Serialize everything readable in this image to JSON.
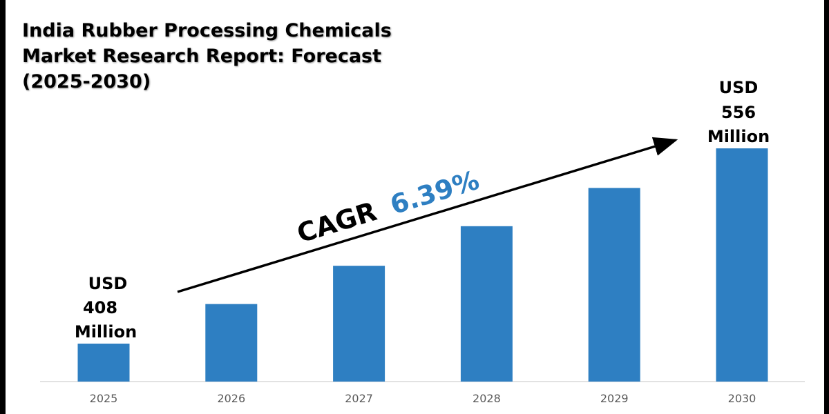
{
  "chart_data": {
    "type": "bar",
    "title": "India Rubber Processing Chemicals Market Research Report: Forecast (2025-2030)",
    "categories": [
      "2025",
      "2026",
      "2027",
      "2028",
      "2029",
      "2030"
    ],
    "values": [
      408,
      438,
      467,
      497,
      526,
      556
    ],
    "unit": "USD Million",
    "ylim": [
      379,
      556
    ],
    "grid": false,
    "bar_color": "#2e7fc2",
    "annotations": {
      "start": {
        "line1": "USD",
        "line2": "408",
        "line3": "Million"
      },
      "end": {
        "line1": "USD",
        "line2": "556",
        "line3": "Million"
      },
      "cagr_label": "CAGR",
      "cagr_value": "6.39%",
      "cagr_color": "#2e7fc2"
    }
  }
}
